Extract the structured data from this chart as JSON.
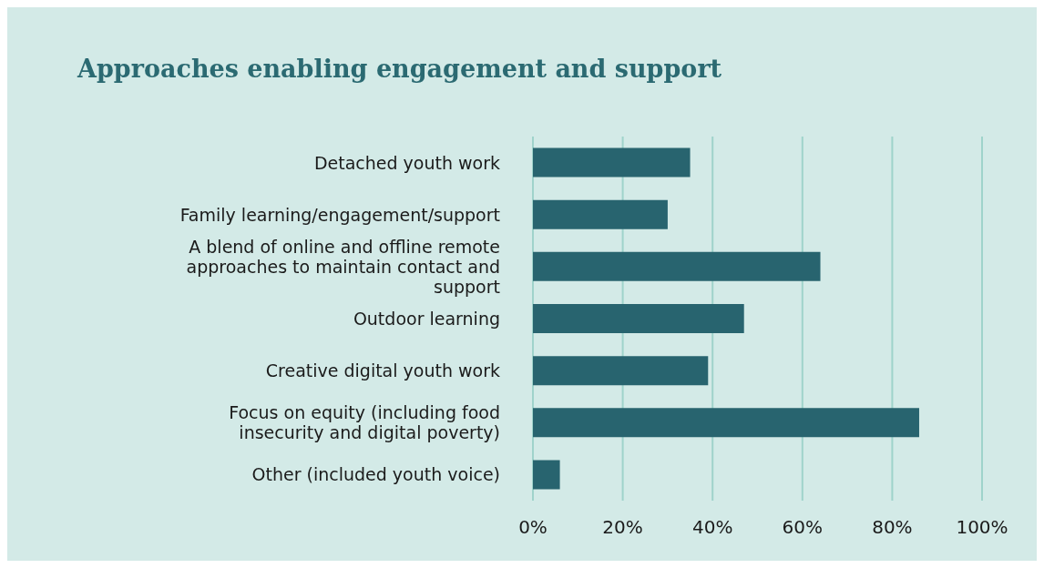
{
  "chart_data": {
    "type": "bar",
    "orientation": "horizontal",
    "title": "Approaches enabling engagement and support",
    "categories": [
      "Detached youth work",
      "Family learning/engagement/support",
      "A blend of online and offline remote approaches to maintain contact and support",
      "Outdoor learning",
      "Creative digital youth work",
      "Focus on equity (including food insecurity and digital poverty)",
      "Other (included youth voice)"
    ],
    "values": [
      35,
      30,
      64,
      47,
      39,
      86,
      6
    ],
    "color": "#28646f",
    "xlim": [
      0,
      100
    ],
    "xticks": [
      {
        "value": 0,
        "label": "0%"
      },
      {
        "value": 20,
        "label": "20%"
      },
      {
        "value": 40,
        "label": "40%"
      },
      {
        "value": 60,
        "label": "60%"
      },
      {
        "value": 80,
        "label": "80%"
      },
      {
        "value": 100,
        "label": "100%"
      }
    ],
    "grid": "x"
  }
}
